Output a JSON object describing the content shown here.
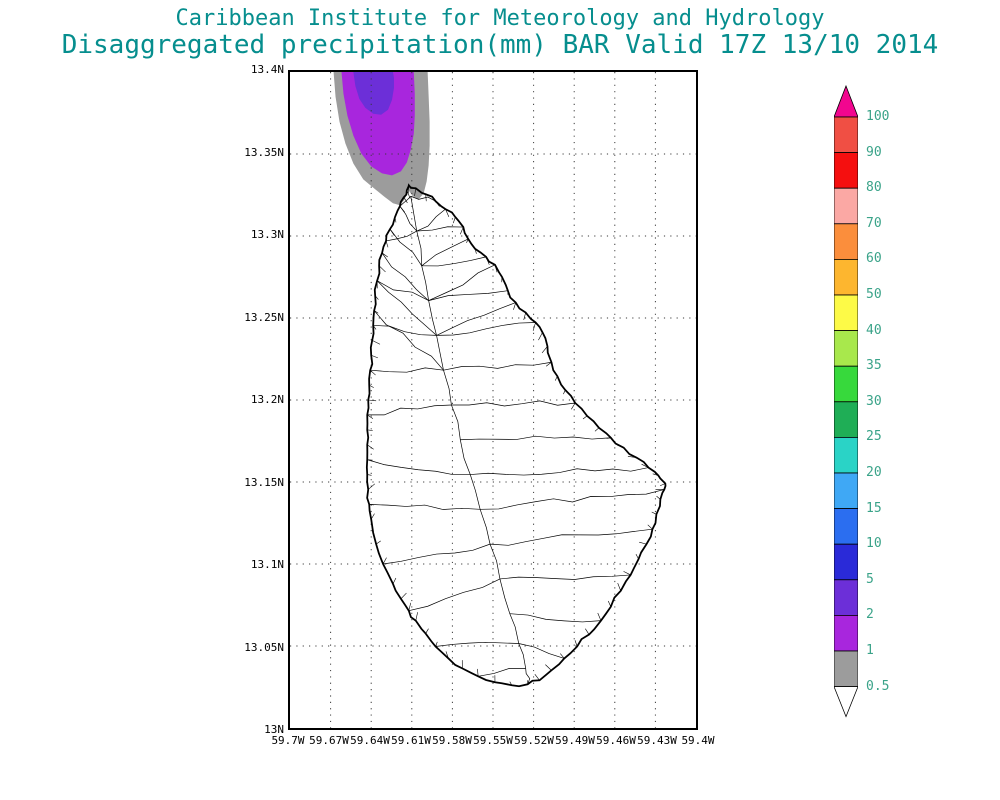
{
  "header": {
    "title_line1": "Caribbean Institute for Meteorology and Hydrology",
    "title_line2": "Disaggregated precipitation(mm) BAR Valid 17Z 13/10 2014"
  },
  "colors": {
    "title": "#068e8e",
    "grid": "#3a3a3a",
    "coast": "#000000",
    "cbar_label": "#3aa389",
    "blob_gray": "#9c9c9c",
    "blob_purple": "#a826dd",
    "blob_violet": "#6c2fd8"
  },
  "map": {
    "lat_labels": [
      "13.4N",
      "13.35N",
      "13.3N",
      "13.25N",
      "13.2N",
      "13.15N",
      "13.1N",
      "13.05N",
      "13N"
    ],
    "lon_labels": [
      "59.7W",
      "59.67W",
      "59.64W",
      "59.61W",
      "59.58W",
      "59.55W",
      "59.52W",
      "59.49W",
      "59.46W",
      "59.43W",
      "59.4W"
    ]
  },
  "chart_data": {
    "type": "heatmap",
    "title": "Disaggregated precipitation(mm) BAR Valid 17Z 13/10 2014",
    "source": "Caribbean Institute for Meteorology and Hydrology",
    "variable": "Disaggregated precipitation",
    "units": "mm",
    "region_code": "BAR",
    "valid": "17Z 13/10 2014",
    "lat_ticks": [
      "13.4N",
      "13.35N",
      "13.3N",
      "13.25N",
      "13.2N",
      "13.15N",
      "13.1N",
      "13.05N",
      "13N"
    ],
    "lon_ticks": [
      "59.7W",
      "59.67W",
      "59.64W",
      "59.61W",
      "59.58W",
      "59.55W",
      "59.52W",
      "59.49W",
      "59.46W",
      "59.43W",
      "59.4W"
    ],
    "lat_range_n": [
      13.0,
      13.4
    ],
    "lon_range_w": [
      59.7,
      59.4
    ],
    "grid": "dotted",
    "basemap": "Barbados coastline with watershed/catchment boundaries",
    "legend_position": "right",
    "colorbar": {
      "orientation": "vertical-right",
      "levels_mm": [
        100,
        90,
        80,
        70,
        60,
        50,
        40,
        35,
        30,
        25,
        20,
        15,
        10,
        5,
        2,
        1,
        0.5
      ],
      "labels": [
        "100",
        "90",
        "80",
        "70",
        "60",
        "50",
        "40",
        "35",
        "30",
        "25",
        "20",
        "15",
        "10",
        "5",
        "2",
        "1",
        "0.5"
      ],
      "colors_top_to_bottom": [
        "#f2068f",
        "#f04f44",
        "#f50f0f",
        "#fba8a4",
        "#fb8e3c",
        "#fdb62f",
        "#fdfa47",
        "#a8e84c",
        "#37d93c",
        "#1fae56",
        "#2ad3c6",
        "#3fa8f5",
        "#2b6ef0",
        "#2a2ad8",
        "#6c2fd8",
        "#a826dd",
        "#9c9c9c",
        "#ffffff"
      ]
    },
    "shaded_cells": [
      {
        "value_range_mm": "0.5-1",
        "color": "#9c9c9c",
        "approx_extent": {
          "lat_n": [
            13.32,
            13.4
          ],
          "lon_w": [
            59.6,
            59.67
          ]
        }
      },
      {
        "value_range_mm": "1-2",
        "color": "#a826dd",
        "approx_extent": {
          "lat_n": [
            13.34,
            13.4
          ],
          "lon_w": [
            59.61,
            59.66
          ]
        }
      },
      {
        "value_range_mm": "2-5",
        "color": "#6c2fd8",
        "approx_extent": {
          "lat_n": [
            13.37,
            13.4
          ],
          "lon_w": [
            59.62,
            59.65
          ]
        }
      }
    ],
    "unshaded_meaning": "precipitation < 0.5 mm over the rest of the domain (island itself unshaded)"
  }
}
